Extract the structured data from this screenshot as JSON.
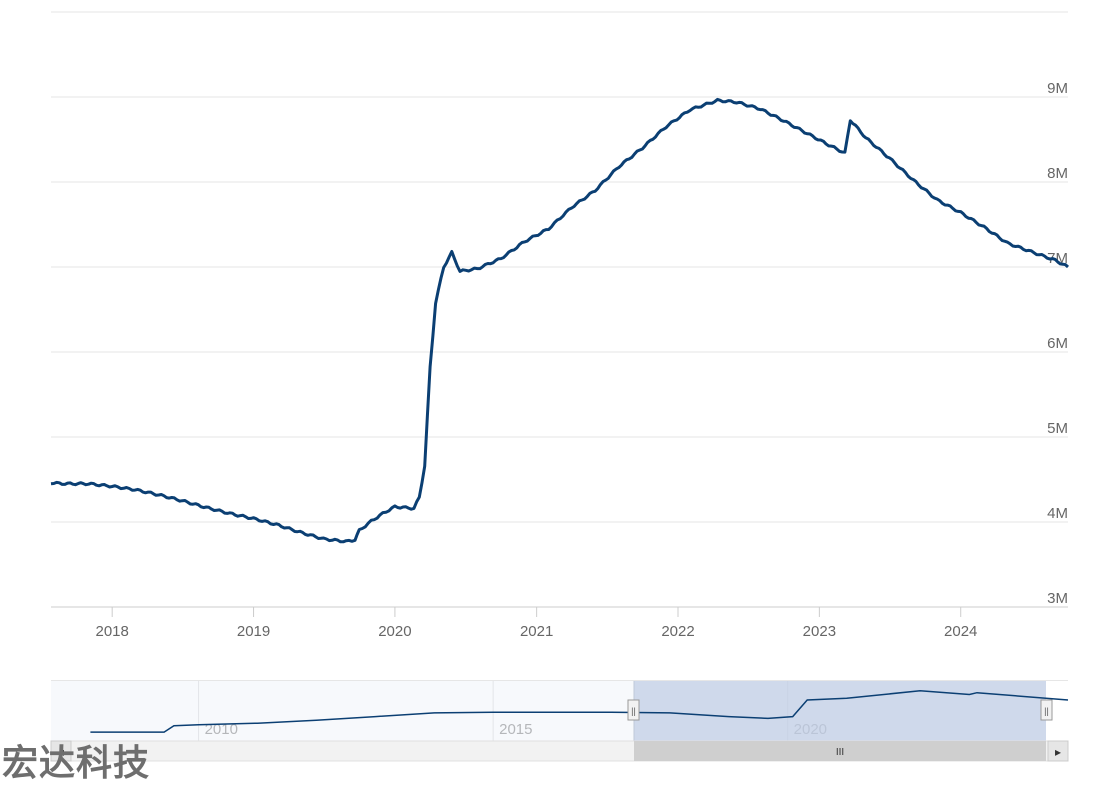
{
  "chart_data": {
    "type": "line",
    "title": "",
    "xlabel": "",
    "ylabel": "",
    "ylim": [
      3000000,
      10000000
    ],
    "xlim": [
      "2017-07-27",
      "2024-10-04"
    ],
    "grid": true,
    "legend": "none",
    "line_color": "#0b3f73",
    "y_ticks": [
      {
        "value": 3000000,
        "label": "3M"
      },
      {
        "value": 4000000,
        "label": "4M"
      },
      {
        "value": 5000000,
        "label": "5M"
      },
      {
        "value": 6000000,
        "label": "6M"
      },
      {
        "value": 7000000,
        "label": "7M"
      },
      {
        "value": 8000000,
        "label": "8M"
      },
      {
        "value": 9000000,
        "label": "9M"
      }
    ],
    "x_ticks": [
      {
        "value": "2018-01-01",
        "label": "2018"
      },
      {
        "value": "2019-01-01",
        "label": "2019"
      },
      {
        "value": "2020-01-01",
        "label": "2020"
      },
      {
        "value": "2021-01-01",
        "label": "2021"
      },
      {
        "value": "2022-01-01",
        "label": "2022"
      },
      {
        "value": "2023-01-01",
        "label": "2023"
      },
      {
        "value": "2024-01-01",
        "label": "2024"
      }
    ],
    "series": [
      {
        "values": [
          [
            "2017-07-27",
            4460000
          ],
          [
            "2017-09-01",
            4450000
          ],
          [
            "2017-11-01",
            4450000
          ],
          [
            "2018-01-01",
            4420000
          ],
          [
            "2018-03-01",
            4380000
          ],
          [
            "2018-05-01",
            4320000
          ],
          [
            "2018-07-01",
            4250000
          ],
          [
            "2018-09-01",
            4170000
          ],
          [
            "2018-11-01",
            4100000
          ],
          [
            "2019-01-01",
            4040000
          ],
          [
            "2019-03-01",
            3970000
          ],
          [
            "2019-05-01",
            3880000
          ],
          [
            "2019-07-01",
            3800000
          ],
          [
            "2019-08-28",
            3770000
          ],
          [
            "2019-09-20",
            3790000
          ],
          [
            "2019-10-01",
            3900000
          ],
          [
            "2019-11-01",
            4010000
          ],
          [
            "2019-12-01",
            4100000
          ],
          [
            "2020-01-01",
            4180000
          ],
          [
            "2020-02-19",
            4160000
          ],
          [
            "2020-03-04",
            4290000
          ],
          [
            "2020-03-18",
            4660000
          ],
          [
            "2020-04-01",
            5820000
          ],
          [
            "2020-04-15",
            6580000
          ],
          [
            "2020-05-06",
            7000000
          ],
          [
            "2020-05-27",
            7170000
          ],
          [
            "2020-06-17",
            6950000
          ],
          [
            "2020-08-01",
            6980000
          ],
          [
            "2020-10-01",
            7100000
          ],
          [
            "2020-12-01",
            7300000
          ],
          [
            "2021-02-01",
            7450000
          ],
          [
            "2021-04-01",
            7700000
          ],
          [
            "2021-06-01",
            7900000
          ],
          [
            "2021-08-01",
            8180000
          ],
          [
            "2021-10-01",
            8400000
          ],
          [
            "2021-12-01",
            8650000
          ],
          [
            "2022-02-01",
            8850000
          ],
          [
            "2022-04-13",
            8960000
          ],
          [
            "2022-06-01",
            8940000
          ],
          [
            "2022-08-01",
            8860000
          ],
          [
            "2022-10-01",
            8720000
          ],
          [
            "2022-12-01",
            8570000
          ],
          [
            "2023-02-01",
            8420000
          ],
          [
            "2023-03-08",
            8340000
          ],
          [
            "2023-03-22",
            8730000
          ],
          [
            "2023-05-01",
            8520000
          ],
          [
            "2023-07-01",
            8280000
          ],
          [
            "2023-09-01",
            8020000
          ],
          [
            "2023-11-01",
            7790000
          ],
          [
            "2024-01-01",
            7640000
          ],
          [
            "2024-03-01",
            7470000
          ],
          [
            "2024-05-01",
            7280000
          ],
          [
            "2024-07-01",
            7180000
          ],
          [
            "2024-09-01",
            7080000
          ],
          [
            "2024-10-04",
            7000000
          ]
        ]
      }
    ]
  },
  "navigator": {
    "x_ticks": [
      "2010",
      "2015",
      "2020"
    ],
    "selected_range": [
      "2017-07-27",
      "2024-10-04"
    ],
    "handle_glyph": "||",
    "scrollbar_glyph": "III",
    "left_arrow": "◂",
    "right_arrow": "▸",
    "series": [
      [
        "2008-03-01",
        0.08
      ],
      [
        "2009-01-01",
        0.08
      ],
      [
        "2009-06-01",
        0.08
      ],
      [
        "2009-08-01",
        0.25
      ],
      [
        "2010-01-01",
        0.28
      ],
      [
        "2011-01-01",
        0.32
      ],
      [
        "2012-01-01",
        0.4
      ],
      [
        "2013-01-01",
        0.5
      ],
      [
        "2014-01-01",
        0.6
      ],
      [
        "2015-01-01",
        0.62
      ],
      [
        "2016-01-01",
        0.62
      ],
      [
        "2017-01-01",
        0.62
      ],
      [
        "2018-01-01",
        0.6
      ],
      [
        "2019-01-01",
        0.5
      ],
      [
        "2019-09-01",
        0.45
      ],
      [
        "2020-02-01",
        0.5
      ],
      [
        "2020-05-01",
        0.95
      ],
      [
        "2021-01-01",
        1.0
      ],
      [
        "2022-04-01",
        1.2
      ],
      [
        "2023-02-01",
        1.1
      ],
      [
        "2023-03-20",
        1.15
      ],
      [
        "2024-10-04",
        0.95
      ]
    ]
  },
  "watermark": "宏达科技"
}
